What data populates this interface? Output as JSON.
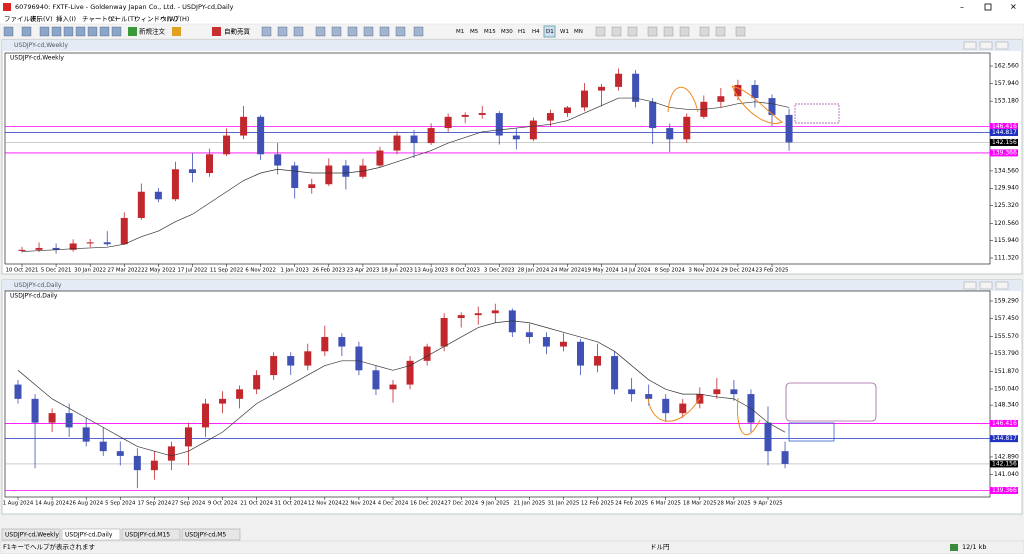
{
  "ui": {
    "title_bar": "60796940: FXTF-Live - Goldenway Japan Co., Ltd. - USDJPY-cd,Daily",
    "menu": [
      "ファイル(F)",
      "表示(V)",
      "挿入(I)",
      "チャート(C)",
      "ツール(T)",
      "ウィンドウ(W)",
      "ヘルプ(H)"
    ],
    "new_order": "新規注文",
    "auto_trading": "自動売買",
    "timeframes": [
      "M1",
      "M5",
      "M15",
      "M30",
      "H1",
      "H4",
      "D1",
      "W1",
      "MN"
    ],
    "tabs": [
      "USDJPY-cd,Weekly",
      "USDJPY-cd,Daily",
      "USDJPY-cd,M15",
      "USDJPY-cd,M5"
    ],
    "status_help": "F1キーでヘルプが表示されます",
    "status_symbol": "ドル円",
    "status_traffic": "12/1 kb"
  },
  "chart_data": [
    {
      "type": "candlestick",
      "window_title": "USDJPY-cd,Weekly",
      "label": "USDJPY-cd,Weekly",
      "up_color": "#c1272d",
      "down_color": "#3f51b5",
      "ma_color": "#333333",
      "categories": [
        "10 Oct 2021",
        null,
        "5 Dec 2021",
        null,
        "30 Jan 2022",
        null,
        "27 Mar 2022",
        null,
        "22 May 2022",
        null,
        "17 Jul 2022",
        null,
        "11 Sep 2022",
        null,
        "6 Nov 2022",
        null,
        "1 Jan 2023",
        null,
        "26 Feb 2023",
        null,
        "23 Apr 2023",
        null,
        "18 Jun 2023",
        null,
        "13 Aug 2023",
        null,
        "8 Oct 2023",
        null,
        "3 Dec 2023",
        null,
        "28 Jan 2024",
        null,
        "24 Mar 2024",
        null,
        "19 May 2024",
        null,
        "14 Jul 2024",
        null,
        "8 Sep 2024",
        null,
        "3 Nov 2024",
        null,
        "29 Dec 2024",
        null,
        "23 Feb 2025",
        null
      ],
      "candles": [
        [
          113.2,
          114.3,
          112.8,
          113.5
        ],
        [
          113.5,
          115.5,
          112.9,
          114
        ],
        [
          114,
          115.2,
          112.5,
          113.5
        ],
        [
          113.5,
          116.3,
          113,
          115.2
        ],
        [
          115.2,
          116.4,
          114.2,
          115.5
        ],
        [
          115.5,
          118.5,
          114.5,
          115
        ],
        [
          115,
          123.5,
          114.8,
          122
        ],
        [
          122,
          131.2,
          121.5,
          129
        ],
        [
          129,
          130,
          126.2,
          127
        ],
        [
          127,
          137,
          126.5,
          135
        ],
        [
          135,
          139.3,
          131.5,
          134
        ],
        [
          134,
          140.5,
          133,
          139
        ],
        [
          139,
          145.9,
          138.5,
          144
        ],
        [
          144,
          151.9,
          143,
          149
        ],
        [
          149,
          149.5,
          137.5,
          139
        ],
        [
          139,
          142,
          133.6,
          136
        ],
        [
          136,
          137,
          127.2,
          130
        ],
        [
          130,
          132.5,
          128.5,
          131
        ],
        [
          131,
          137.9,
          130.5,
          136
        ],
        [
          136,
          137.5,
          129.6,
          133
        ],
        [
          133,
          137.8,
          132.5,
          136
        ],
        [
          136,
          141,
          135.5,
          140
        ],
        [
          140,
          145.1,
          139,
          144
        ],
        [
          144,
          145.5,
          138,
          142
        ],
        [
          142,
          147.3,
          141.5,
          146
        ],
        [
          146,
          149.9,
          145,
          149
        ],
        [
          149,
          150.2,
          147.3,
          149.5
        ],
        [
          149.5,
          151.9,
          148.5,
          150
        ],
        [
          150,
          150.5,
          141.6,
          144
        ],
        [
          144,
          146,
          140.3,
          143
        ],
        [
          143,
          148.8,
          142.5,
          148
        ],
        [
          148,
          150.9,
          146.5,
          150
        ],
        [
          150,
          151.9,
          149,
          151.5
        ],
        [
          151.5,
          158,
          150.5,
          156
        ],
        [
          156,
          157.8,
          151.8,
          157
        ],
        [
          157,
          161.9,
          156,
          160.5
        ],
        [
          160.5,
          161.5,
          151.5,
          153
        ],
        [
          153,
          154,
          141.7,
          146
        ],
        [
          146,
          147.2,
          139.6,
          143
        ],
        [
          143,
          149.9,
          142,
          149
        ],
        [
          149,
          154.7,
          148.5,
          153
        ],
        [
          153,
          156.7,
          151.5,
          154.5
        ],
        [
          154.5,
          158.9,
          153.5,
          157.5
        ],
        [
          157.5,
          158.8,
          151.5,
          154
        ],
        [
          154,
          155,
          146.5,
          149.5
        ],
        [
          149.5,
          151.2,
          139.9,
          142.156
        ]
      ],
      "ma": [
        113,
        113.3,
        113.5,
        113.8,
        114,
        114.2,
        115,
        117,
        118.5,
        121,
        123,
        126,
        129,
        132,
        134,
        135,
        134.5,
        134,
        134,
        134,
        134.5,
        135.5,
        137,
        138.5,
        140,
        142,
        143.5,
        145,
        145.5,
        146,
        146.5,
        147,
        148,
        150,
        152,
        154,
        154,
        153,
        151.5,
        151,
        151,
        151.5,
        152.5,
        153,
        152.5,
        151.5
      ],
      "ylim": [
        110.25,
        165.5
      ],
      "yticks": [
        {
          "value": 162.56,
          "label": "162.560"
        },
        {
          "value": 157.94,
          "label": "157.940"
        },
        {
          "value": 153.18,
          "label": "153.180"
        },
        {
          "value": 134.56,
          "label": "134.560"
        },
        {
          "value": 129.94,
          "label": "129.940"
        },
        {
          "value": 125.32,
          "label": "125.320"
        },
        {
          "value": 120.56,
          "label": "120.560"
        },
        {
          "value": 115.94,
          "label": "115.940"
        },
        {
          "value": 111.32,
          "label": "111.320"
        }
      ],
      "levels": [
        {
          "value": 146.416,
          "color": "#ff00ff"
        },
        {
          "value": 144.817,
          "color": "#2030c0"
        },
        {
          "value": 139.366,
          "color": "#ff00ff"
        }
      ],
      "last_price": 142.156
    },
    {
      "type": "candlestick",
      "window_title": "USDJPY-cd,Daily",
      "label": "USDJPY-cd,Daily",
      "up_color": "#c1272d",
      "down_color": "#3f51b5",
      "ma_color": "#333333",
      "categories": [
        "1 Aug 2024",
        null,
        "14 Aug 2024",
        null,
        "26 Aug 2024",
        null,
        "5 Sep 2024",
        null,
        "17 Sep 2024",
        null,
        "27 Sep 2024",
        null,
        "9 Oct 2024",
        null,
        "21 Oct 2024",
        null,
        "31 Oct 2024",
        null,
        "12 Nov 2024",
        null,
        "22 Nov 2024",
        null,
        "4 Dec 2024",
        null,
        "16 Dec 2024",
        null,
        "27 Dec 2024",
        null,
        "9 Jan 2025",
        null,
        "21 Jan 2025",
        null,
        "31 Jan 2025",
        null,
        "12 Feb 2025",
        null,
        "24 Feb 2025",
        null,
        "6 Mar 2025",
        null,
        "18 Mar 2025",
        null,
        "28 Mar 2025",
        null,
        "9 Apr 2025",
        null
      ],
      "candles": [
        [
          150.5,
          151,
          148.5,
          149
        ],
        [
          149,
          149.5,
          141.7,
          146.5
        ],
        [
          146.5,
          148,
          145.5,
          147.5
        ],
        [
          147.5,
          148.5,
          145,
          146
        ],
        [
          146,
          147,
          144,
          144.5
        ],
        [
          144.5,
          146,
          143,
          143.5
        ],
        [
          143.5,
          144.5,
          142,
          143
        ],
        [
          143,
          143.8,
          139.6,
          141.5
        ],
        [
          141.5,
          143.5,
          140.5,
          142.5
        ],
        [
          142.5,
          144.5,
          141.5,
          144
        ],
        [
          144,
          146.5,
          142,
          146
        ],
        [
          146,
          149,
          145,
          148.5
        ],
        [
          148.5,
          149.8,
          147.5,
          149
        ],
        [
          149,
          150.4,
          148,
          150
        ],
        [
          150,
          152,
          149.5,
          151.5
        ],
        [
          151.5,
          153.9,
          151,
          153.5
        ],
        [
          153.5,
          153.9,
          151.5,
          152.5
        ],
        [
          152.5,
          154.8,
          152,
          154
        ],
        [
          154,
          156.7,
          153.5,
          155.5
        ],
        [
          155.5,
          155.9,
          153.5,
          154.5
        ],
        [
          154.5,
          155,
          151.5,
          152
        ],
        [
          152,
          152.5,
          149.4,
          150
        ],
        [
          150,
          151,
          148.6,
          150.5
        ],
        [
          150.5,
          153.5,
          150,
          153
        ],
        [
          153,
          154.8,
          152.5,
          154.5
        ],
        [
          154.5,
          158,
          154,
          157.5
        ],
        [
          157.5,
          158.1,
          156.5,
          157.8
        ],
        [
          157.8,
          158.7,
          156.8,
          158
        ],
        [
          158,
          159,
          157,
          158.3
        ],
        [
          158.3,
          158.5,
          155.5,
          156
        ],
        [
          156,
          156.9,
          154.8,
          155.5
        ],
        [
          155.5,
          156,
          153.7,
          154.5
        ],
        [
          154.5,
          155.9,
          154,
          155
        ],
        [
          155,
          155.3,
          151.5,
          152.5
        ],
        [
          152.5,
          154.8,
          151.8,
          153.5
        ],
        [
          153.5,
          154,
          149.5,
          150
        ],
        [
          150,
          151.2,
          148.7,
          149.5
        ],
        [
          149.5,
          150.5,
          148.3,
          149
        ],
        [
          149,
          149.5,
          146.6,
          147.5
        ],
        [
          147.5,
          149,
          147,
          148.5
        ],
        [
          148.5,
          150.2,
          148,
          149.5
        ],
        [
          149.5,
          151.2,
          149,
          150
        ],
        [
          150,
          151,
          148.8,
          149.5
        ],
        [
          149.5,
          150,
          145.5,
          146.5
        ],
        [
          146.5,
          148.2,
          142,
          143.5
        ],
        [
          143.5,
          144.5,
          141.7,
          142.156
        ]
      ],
      "ma": [
        152,
        150.5,
        149,
        148,
        147,
        146,
        145,
        144,
        143.5,
        143,
        143.5,
        144.5,
        145.5,
        147,
        148.5,
        149.5,
        150.5,
        151.5,
        152.5,
        153,
        153,
        152.5,
        152,
        152.5,
        153.5,
        154.5,
        155.5,
        156.5,
        157,
        157.2,
        157,
        156.5,
        156,
        155.5,
        155,
        154,
        152.5,
        151,
        150,
        149.5,
        149.5,
        149.2,
        149,
        148,
        146.5,
        145.5
      ],
      "ylim": [
        138.89,
        160.13
      ],
      "yticks": [
        {
          "value": 159.29,
          "label": "159.290"
        },
        {
          "value": 157.45,
          "label": "157.450"
        },
        {
          "value": 155.57,
          "label": "155.570"
        },
        {
          "value": 153.79,
          "label": "153.790"
        },
        {
          "value": 151.87,
          "label": "151.870"
        },
        {
          "value": 150.04,
          "label": "150.040"
        },
        {
          "value": 148.34,
          "label": "148.340"
        },
        {
          "value": 142.89,
          "label": "142.890"
        },
        {
          "value": 141.04,
          "label": "141.040"
        }
      ],
      "levels": [
        {
          "value": 146.416,
          "color": "#ff00ff"
        },
        {
          "value": 144.817,
          "color": "#2030c0"
        },
        {
          "value": 139.366,
          "color": "#ff00ff"
        }
      ],
      "last_price": 142.156
    }
  ]
}
